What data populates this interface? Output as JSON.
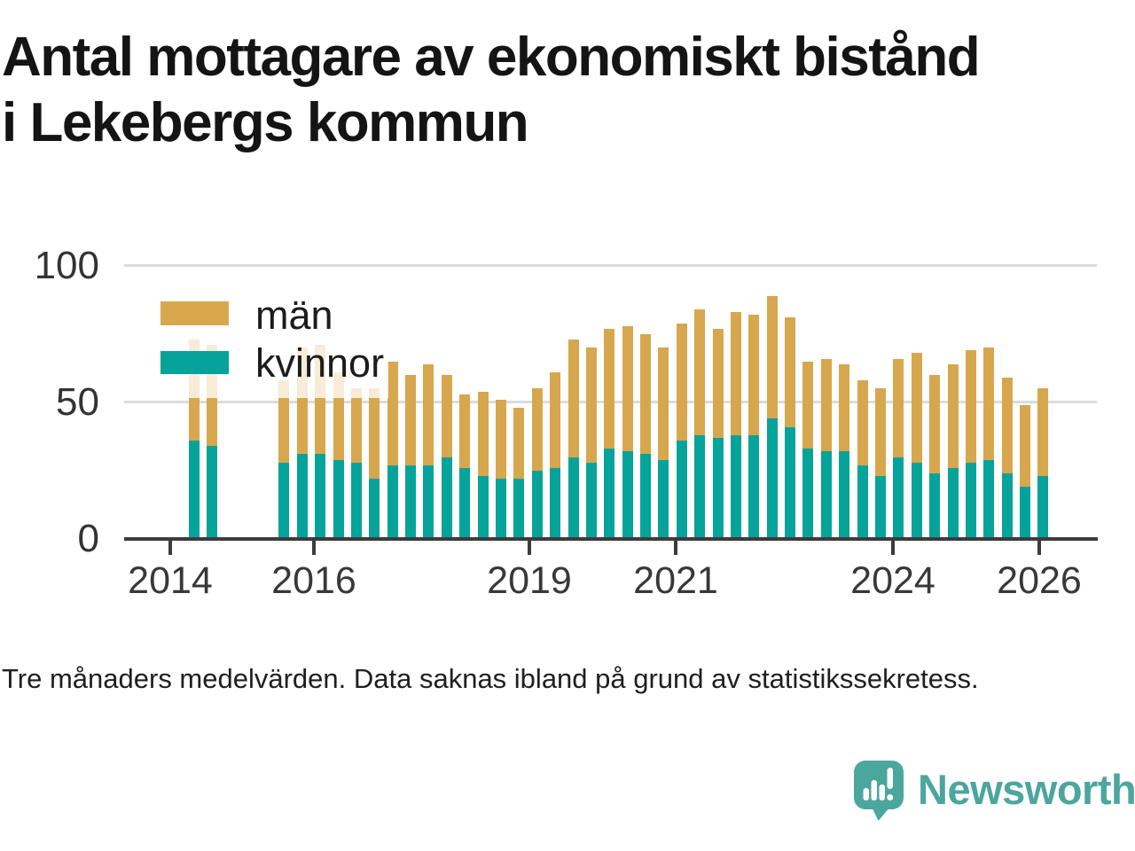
{
  "title_lines": [
    "Antal mottagare av ekonomiskt bistånd",
    "i Lekebergs kommun"
  ],
  "footer_note": "Tre månaders medelvärden. Data saknas ibland på grund av statistikssekretess.",
  "logo": {
    "text": "Newsworthy",
    "icon": "bar-chart-speech-bubble-icon"
  },
  "colors": {
    "man_bar": "#D7A74E",
    "kvinna_bar": "#05A39A",
    "grid": "#DBDBDB",
    "axis": "#3C3C3C",
    "tick_text": "#333333",
    "title_text": "#141414",
    "footer_text": "#1F1F1F",
    "logo_teal": "#4BA69E",
    "legend_bg": "rgba(255,255,255,0.78)"
  },
  "legend": [
    {
      "label": "män",
      "color_key": "man_bar"
    },
    {
      "label": "kvinnor",
      "color_key": "kvinna_bar"
    }
  ],
  "chart_data": {
    "type": "bar",
    "stacked": true,
    "title": "Antal mottagare av ekonomiskt bistånd i Lekebergs kommun",
    "note": "Tre månaders medelvärden. Data saknas ibland på grund av statistikssekretess.",
    "x_unit": "quarter",
    "x": [
      "2014Q2",
      "2014Q3",
      "2014Q4",
      "2015Q1",
      "2015Q2",
      "2015Q3",
      "2015Q4",
      "2016Q1",
      "2016Q2",
      "2016Q3",
      "2016Q4",
      "2017Q1",
      "2017Q2",
      "2017Q3",
      "2017Q4",
      "2018Q1",
      "2018Q2",
      "2018Q3",
      "2018Q4",
      "2019Q1",
      "2019Q2",
      "2019Q3",
      "2019Q4",
      "2020Q1",
      "2020Q2",
      "2020Q3",
      "2020Q4",
      "2021Q1",
      "2021Q2",
      "2021Q3",
      "2021Q4",
      "2022Q1",
      "2022Q2",
      "2022Q3",
      "2022Q4",
      "2023Q1",
      "2023Q2",
      "2023Q3",
      "2023Q4",
      "2024Q1",
      "2024Q2",
      "2024Q3",
      "2024Q4",
      "2025Q1",
      "2025Q2",
      "2025Q3",
      "2025Q4",
      "2026Q1"
    ],
    "series": [
      {
        "name": "män",
        "color_key": "man_bar",
        "values": [
          37,
          37,
          null,
          null,
          null,
          30,
          39,
          40,
          32,
          27,
          33,
          38,
          33,
          37,
          30,
          27,
          31,
          29,
          26,
          30,
          35,
          43,
          42,
          44,
          46,
          44,
          41,
          43,
          46,
          40,
          45,
          44,
          45,
          40,
          32,
          34,
          32,
          31,
          32,
          36,
          40,
          36,
          38,
          41,
          41,
          35,
          30,
          32
        ]
      },
      {
        "name": "kvinnor",
        "color_key": "kvinna_bar",
        "values": [
          36,
          34,
          null,
          null,
          null,
          28,
          31,
          31,
          29,
          28,
          22,
          27,
          27,
          27,
          30,
          26,
          23,
          22,
          22,
          25,
          26,
          30,
          28,
          33,
          32,
          31,
          29,
          36,
          38,
          37,
          38,
          38,
          44,
          41,
          33,
          32,
          32,
          27,
          23,
          30,
          28,
          24,
          26,
          28,
          29,
          24,
          19,
          23
        ]
      }
    ],
    "ylim": [
      0,
      100
    ],
    "yticks": [
      0,
      50,
      100
    ],
    "xtick_labels": [
      "2014",
      "2016",
      "2019",
      "2021",
      "2024",
      "2026"
    ],
    "grid": "horizontal",
    "legend_position": "inside-top-left"
  }
}
